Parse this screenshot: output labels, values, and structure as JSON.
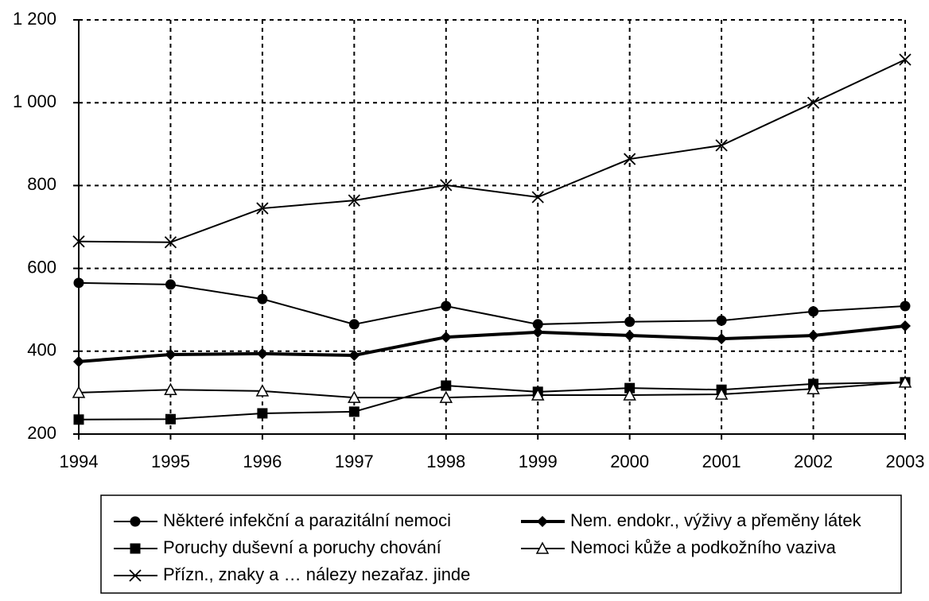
{
  "chart_data": {
    "type": "line",
    "x": [
      1994,
      1995,
      1996,
      1997,
      1998,
      1999,
      2000,
      2001,
      2002,
      2003
    ],
    "xlim": [
      1994,
      2003
    ],
    "ylim": [
      200,
      1200
    ],
    "yticks": [
      200,
      400,
      600,
      800,
      {
        "value": 1000,
        "label": "1 000"
      },
      {
        "value": 1200,
        "label": "1 200"
      }
    ],
    "grid": true,
    "legend": "bottom",
    "series": [
      {
        "name": "Některé infekční a parazitální nemoci",
        "color": "#000000",
        "marker": "circle",
        "line_width": 2,
        "values": [
          565,
          561,
          526,
          465,
          509,
          465,
          471,
          474,
          496,
          509
        ]
      },
      {
        "name": "Nem. endokr., výživy a přeměny látek",
        "color": "#000000",
        "marker": "diamond",
        "line_width": 4,
        "values": [
          375,
          392,
          394,
          390,
          434,
          446,
          438,
          430,
          438,
          461
        ]
      },
      {
        "name": "Poruchy duševní a poruchy chování",
        "color": "#000000",
        "marker": "square",
        "line_width": 2,
        "values": [
          235,
          236,
          250,
          254,
          317,
          302,
          311,
          307,
          321,
          325
        ]
      },
      {
        "name": "Nemoci kůže a podkožního vaziva",
        "color": "#000000",
        "marker": "triangle",
        "line_width": 2,
        "values": [
          300,
          307,
          304,
          288,
          288,
          294,
          294,
          296,
          309,
          325
        ]
      },
      {
        "name": "Přízn., znaky a … nálezy nezařaz. jinde",
        "color": "#000000",
        "marker": "x",
        "line_width": 2,
        "values": [
          665,
          663,
          745,
          764,
          801,
          772,
          864,
          897,
          1000,
          1104
        ]
      }
    ]
  }
}
